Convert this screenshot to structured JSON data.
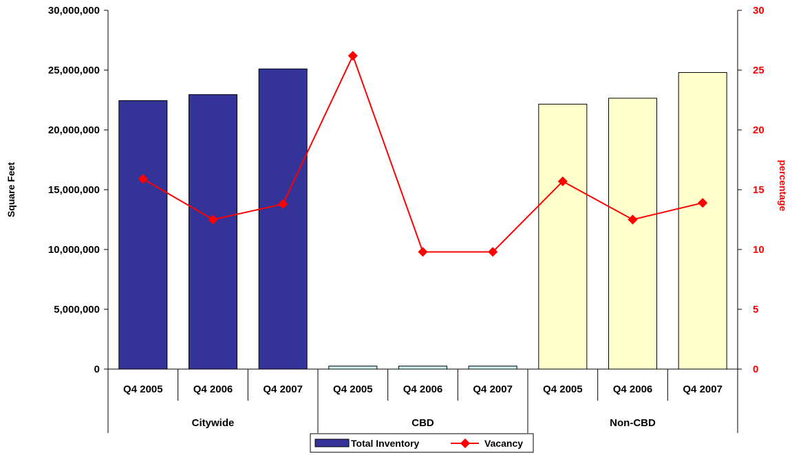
{
  "chart_data": {
    "type": "bar",
    "groups": [
      "Citywide",
      "CBD",
      "Non-CBD"
    ],
    "categories": [
      "Q4 2005",
      "Q4 2006",
      "Q4 2007",
      "Q4 2005",
      "Q4 2006",
      "Q4 2007",
      "Q4 2005",
      "Q4 2006",
      "Q4 2007"
    ],
    "series": [
      {
        "name": "Total Inventory",
        "type": "bar",
        "axis": "left",
        "values": [
          22450000,
          22950000,
          25100000,
          250000,
          250000,
          250000,
          22150000,
          22650000,
          24800000
        ],
        "colors": [
          "#333399",
          "#333399",
          "#333399",
          "#CCFFFF",
          "#CCFFFF",
          "#CCFFFF",
          "#FFFFCC",
          "#FFFFCC",
          "#FFFFCC"
        ]
      },
      {
        "name": "Vacancy",
        "type": "line",
        "axis": "right",
        "color": "#FF0000",
        "values": [
          15.9,
          12.5,
          13.8,
          26.2,
          9.8,
          9.8,
          15.7,
          12.5,
          13.9
        ]
      }
    ],
    "ylabel": "Square Feet",
    "y2label": "percentage",
    "ylim": [
      0,
      30000000
    ],
    "y2lim": [
      0,
      30
    ],
    "yticks": [
      "0",
      "5,000,000",
      "10,000,000",
      "15,000,000",
      "20,000,000",
      "25,000,000",
      "30,000,000"
    ],
    "y2ticks": [
      "0",
      "5",
      "10",
      "15",
      "20",
      "25",
      "30"
    ],
    "grid": false,
    "legend": "bottom",
    "legend_entries": [
      "Total Inventory",
      "Vacancy"
    ]
  }
}
